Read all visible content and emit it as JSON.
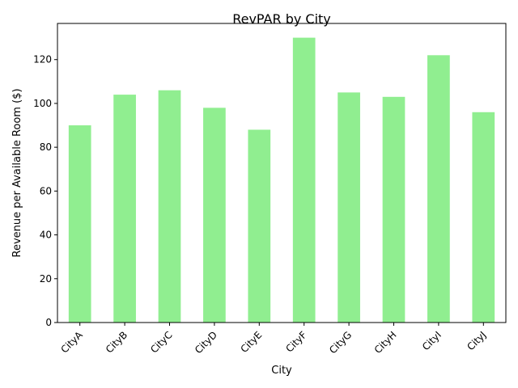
{
  "chart_data": {
    "type": "bar",
    "title": "RevPAR by City",
    "xlabel": "City",
    "ylabel": "Revenue per Available Room ($)",
    "categories": [
      "CityA",
      "CityB",
      "CityC",
      "CityD",
      "CityE",
      "CityF",
      "CityG",
      "CityH",
      "CityI",
      "CityJ"
    ],
    "values": [
      90,
      104,
      106,
      98,
      88,
      130,
      105,
      103,
      122,
      96
    ],
    "ylim": [
      0,
      136.5
    ],
    "yticks": [
      0,
      20,
      40,
      60,
      80,
      100,
      120
    ],
    "bar_color": "#90ee90",
    "grid": false,
    "legend": "none"
  }
}
